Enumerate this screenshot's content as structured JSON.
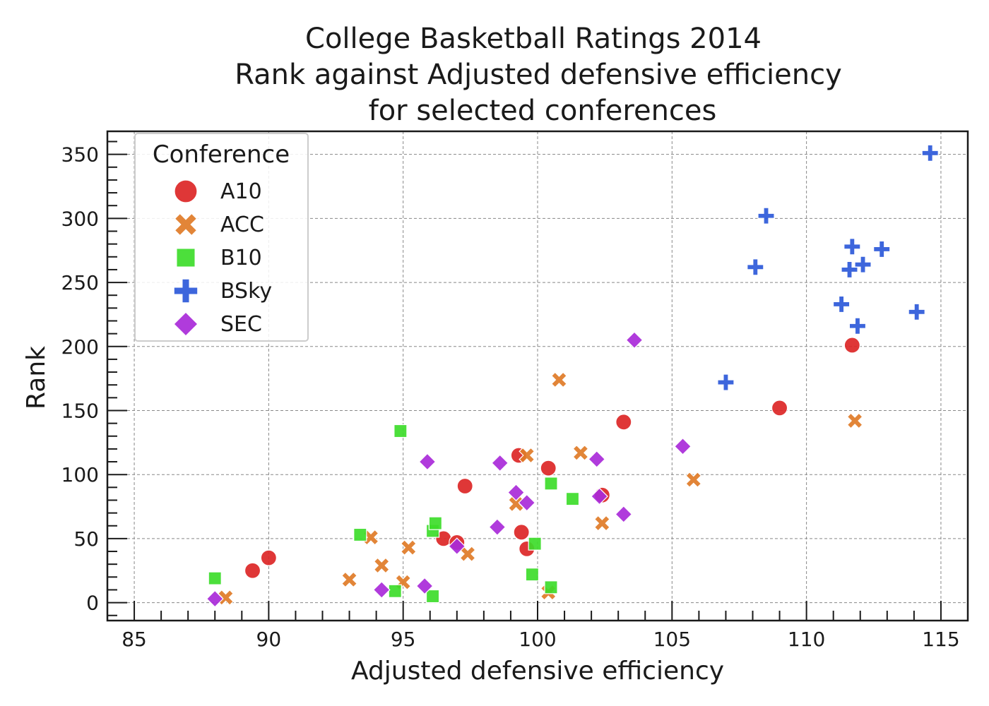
{
  "chart_data": {
    "type": "scatter",
    "title_lines": [
      "College Basketball Ratings 2014",
      "Rank against Adjusted defensive efficiency",
      "for selected conferences"
    ],
    "xlabel": "Adjusted defensive efficiency",
    "ylabel": "Rank",
    "xlim": [
      84,
      116
    ],
    "ylim": [
      -14,
      368
    ],
    "xticks": [
      85,
      90,
      95,
      100,
      105,
      110,
      115
    ],
    "yticks": [
      0,
      50,
      100,
      150,
      200,
      250,
      300,
      350
    ],
    "grid": true,
    "legend": {
      "title": "Conference",
      "placement": "top-left"
    },
    "series": [
      {
        "name": "A10",
        "color": "#dc2626",
        "marker": "circle",
        "points": [
          [
            89.4,
            25
          ],
          [
            90.0,
            35
          ],
          [
            96.5,
            50
          ],
          [
            97.0,
            47
          ],
          [
            97.3,
            91
          ],
          [
            99.3,
            115
          ],
          [
            99.4,
            55
          ],
          [
            99.6,
            42
          ],
          [
            100.4,
            105
          ],
          [
            102.4,
            84
          ],
          [
            103.2,
            141
          ],
          [
            109.0,
            152
          ],
          [
            111.7,
            201
          ]
        ]
      },
      {
        "name": "ACC",
        "color": "#e07b27",
        "marker": "x",
        "points": [
          [
            88.4,
            4
          ],
          [
            93.0,
            18
          ],
          [
            93.8,
            51
          ],
          [
            94.2,
            29
          ],
          [
            95.0,
            16
          ],
          [
            95.2,
            43
          ],
          [
            97.4,
            38
          ],
          [
            99.2,
            77
          ],
          [
            99.6,
            115
          ],
          [
            100.4,
            8
          ],
          [
            100.8,
            174
          ],
          [
            101.6,
            117
          ],
          [
            102.4,
            62
          ],
          [
            105.8,
            96
          ],
          [
            111.8,
            142
          ]
        ]
      },
      {
        "name": "B10",
        "color": "#3ddc2a",
        "marker": "square",
        "points": [
          [
            88.0,
            19
          ],
          [
            93.4,
            53
          ],
          [
            94.7,
            9
          ],
          [
            94.9,
            134
          ],
          [
            96.1,
            5
          ],
          [
            96.1,
            56
          ],
          [
            96.2,
            62
          ],
          [
            99.8,
            22
          ],
          [
            99.9,
            46
          ],
          [
            100.5,
            93
          ],
          [
            100.5,
            12
          ],
          [
            101.3,
            81
          ]
        ]
      },
      {
        "name": "BSky",
        "color": "#2c59d9",
        "marker": "plus",
        "points": [
          [
            107.0,
            172
          ],
          [
            108.1,
            262
          ],
          [
            108.5,
            302
          ],
          [
            111.3,
            233
          ],
          [
            111.6,
            260
          ],
          [
            111.7,
            278
          ],
          [
            111.9,
            216
          ],
          [
            112.1,
            264
          ],
          [
            112.8,
            276
          ],
          [
            114.1,
            227
          ],
          [
            114.6,
            351
          ]
        ]
      },
      {
        "name": "SEC",
        "color": "#a92ad9",
        "marker": "diamond",
        "points": [
          [
            88.0,
            3
          ],
          [
            94.2,
            10
          ],
          [
            95.8,
            13
          ],
          [
            95.9,
            110
          ],
          [
            97.0,
            44
          ],
          [
            98.5,
            59
          ],
          [
            98.6,
            109
          ],
          [
            99.2,
            86
          ],
          [
            99.6,
            78
          ],
          [
            102.2,
            112
          ],
          [
            102.3,
            83
          ],
          [
            103.2,
            69
          ],
          [
            103.6,
            205
          ],
          [
            105.4,
            122
          ]
        ]
      }
    ]
  }
}
